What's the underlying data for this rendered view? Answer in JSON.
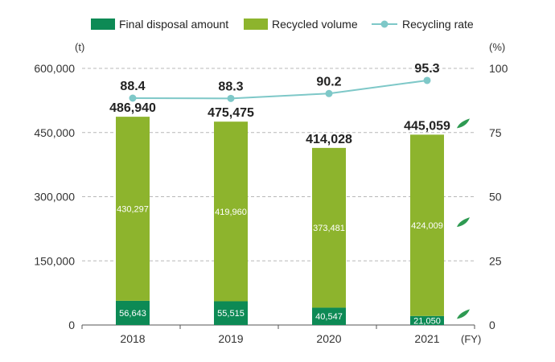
{
  "chart_data": {
    "type": "bar",
    "subtype": "stacked-bar-with-line",
    "categories": [
      "2018",
      "2019",
      "2020",
      "2021"
    ],
    "series": [
      {
        "name": "Final disposal amount",
        "type": "bar",
        "color": "#0d8a55",
        "values": [
          56643,
          55515,
          40547,
          21050
        ],
        "labels": [
          "56,643",
          "55,515",
          "40,547",
          "21,050"
        ]
      },
      {
        "name": "Recycled volume",
        "type": "bar",
        "color": "#8db42d",
        "values": [
          430297,
          419960,
          373481,
          424009
        ],
        "labels": [
          "430,297",
          "419,960",
          "373,481",
          "424,009"
        ]
      },
      {
        "name": "Recycling rate",
        "type": "line",
        "axis": "right",
        "color": "#7ec8c8",
        "values": [
          88.4,
          88.3,
          90.2,
          95.3
        ],
        "labels": [
          "88.4",
          "88.3",
          "90.2",
          "95.3"
        ]
      }
    ],
    "totals": [
      486940,
      475475,
      414028,
      445059
    ],
    "total_labels": [
      "486,940",
      "475,475",
      "414,028",
      "445,059"
    ],
    "y_left": {
      "unit": "(t)",
      "range": [
        0,
        600000
      ],
      "ticks": [
        0,
        150000,
        300000,
        450000,
        600000
      ],
      "tick_labels": [
        "0",
        "150,000",
        "300,000",
        "450,000",
        "600,000"
      ]
    },
    "y_right": {
      "unit": "(%)",
      "range": [
        0,
        100
      ],
      "ticks": [
        0,
        25,
        50,
        75,
        100
      ],
      "tick_labels": [
        "0",
        "25",
        "50",
        "75",
        "100"
      ]
    },
    "x_unit": "(FY)",
    "grid": "dashed-horizontal",
    "legend_position": "top",
    "leaf_color": "#2e9a52"
  }
}
